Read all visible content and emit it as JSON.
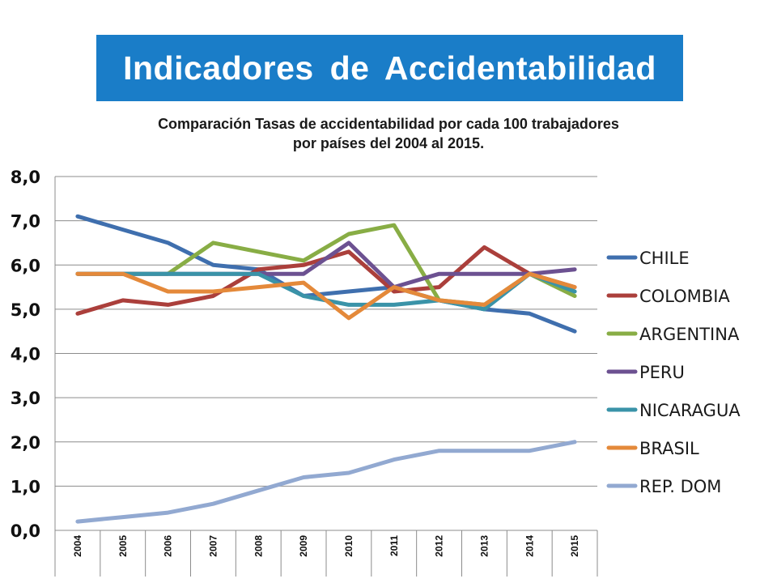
{
  "header": {
    "title": "Indicadores de Accidentabilidad",
    "subtitle_line1": "Comparación Tasas de accidentabilidad por cada 100 trabajadores",
    "subtitle_line2": "por países del 2004 al 2015."
  },
  "colors": {
    "banner": "#1a7dc8"
  },
  "chart_data": {
    "type": "line",
    "title": "Comparación Tasas de accidentabilidad por cada 100 trabajadores por países del 2004 al 2015.",
    "xlabel": "",
    "ylabel": "",
    "x": [
      "2004",
      "2005",
      "2006",
      "2007",
      "2008",
      "2009",
      "2010",
      "2011",
      "2012",
      "2013",
      "2014",
      "2015"
    ],
    "ylim": [
      0,
      8
    ],
    "yticks": [
      "0,0",
      "1,0",
      "2,0",
      "3,0",
      "4,0",
      "5,0",
      "6,0",
      "7,0",
      "8,0"
    ],
    "grid": true,
    "legend_position": "right",
    "series": [
      {
        "name": "CHILE",
        "color": "#3f6fae",
        "values": [
          7.1,
          6.8,
          6.5,
          6.0,
          5.9,
          5.3,
          5.4,
          5.5,
          5.2,
          5.0,
          4.9,
          4.5
        ]
      },
      {
        "name": "COLOMBIA",
        "color": "#ab3f3b",
        "values": [
          4.9,
          5.2,
          5.1,
          5.3,
          5.9,
          6.0,
          6.3,
          5.4,
          5.5,
          6.4,
          5.8,
          5.5
        ]
      },
      {
        "name": "ARGENTINA",
        "color": "#88ad45",
        "values": [
          5.8,
          5.8,
          5.8,
          6.5,
          6.3,
          6.1,
          6.7,
          6.9,
          5.2,
          5.1,
          5.8,
          5.3
        ]
      },
      {
        "name": "PERU",
        "color": "#6c5191",
        "values": [
          5.8,
          5.8,
          5.8,
          5.8,
          5.8,
          5.8,
          6.5,
          5.5,
          5.8,
          5.8,
          5.8,
          5.9
        ]
      },
      {
        "name": "NICARAGUA",
        "color": "#3a93a8",
        "values": [
          5.8,
          5.8,
          5.8,
          5.8,
          5.8,
          5.3,
          5.1,
          5.1,
          5.2,
          5.0,
          5.8,
          5.4
        ]
      },
      {
        "name": "BRASIL",
        "color": "#e4893a",
        "values": [
          5.8,
          5.8,
          5.4,
          5.4,
          5.5,
          5.6,
          4.8,
          5.5,
          5.2,
          5.1,
          5.8,
          5.5
        ]
      },
      {
        "name": "REP. DOM",
        "color": "#92a9d1",
        "values": [
          0.2,
          0.3,
          0.4,
          0.6,
          0.9,
          1.2,
          1.3,
          1.6,
          1.8,
          1.8,
          1.8,
          2.0
        ]
      }
    ]
  }
}
